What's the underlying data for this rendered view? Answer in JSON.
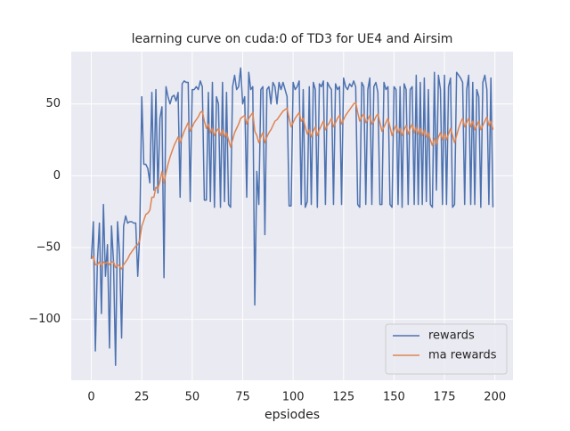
{
  "chart_data": {
    "type": "line",
    "title": "learning curve on cuda:0 of TD3 for UE4 and Airsim",
    "x_label": "epsiodes",
    "x": [
      0,
      1,
      2,
      3,
      4,
      5,
      6,
      7,
      8,
      9,
      10,
      11,
      12,
      13,
      14,
      15,
      16,
      17,
      18,
      19,
      20,
      21,
      22,
      23,
      24,
      25,
      26,
      27,
      28,
      29,
      30,
      31,
      32,
      33,
      34,
      35,
      36,
      37,
      38,
      39,
      40,
      41,
      42,
      43,
      44,
      45,
      46,
      47,
      48,
      49,
      50,
      51,
      52,
      53,
      54,
      55,
      56,
      57,
      58,
      59,
      60,
      61,
      62,
      63,
      64,
      65,
      66,
      67,
      68,
      69,
      70,
      71,
      72,
      73,
      74,
      75,
      76,
      77,
      78,
      79,
      80,
      81,
      82,
      83,
      84,
      85,
      86,
      87,
      88,
      89,
      90,
      91,
      92,
      93,
      94,
      95,
      96,
      97,
      98,
      99,
      100,
      101,
      102,
      103,
      104,
      105,
      106,
      107,
      108,
      109,
      110,
      111,
      112,
      113,
      114,
      115,
      116,
      117,
      118,
      119,
      120,
      121,
      122,
      123,
      124,
      125,
      126,
      127,
      128,
      129,
      130,
      131,
      132,
      133,
      134,
      135,
      136,
      137,
      138,
      139,
      140,
      141,
      142,
      143,
      144,
      145,
      146,
      147,
      148,
      149,
      150,
      151,
      152,
      153,
      154,
      155,
      156,
      157,
      158,
      159,
      160,
      161,
      162,
      163,
      164,
      165,
      166,
      167,
      168,
      169,
      170,
      171,
      172,
      173,
      174,
      175,
      176,
      177,
      178,
      179,
      180,
      181,
      182,
      183,
      184,
      185,
      186,
      187,
      188,
      189,
      190,
      191,
      192,
      193,
      194,
      195,
      196,
      197,
      198,
      199
    ],
    "series": [
      {
        "name": "rewards",
        "color": "#4c72b0",
        "values": [
          -58,
          -32,
          -122,
          -60,
          -33,
          -96,
          -20,
          -70,
          -48,
          -120,
          -35,
          -60,
          -132,
          -32,
          -55,
          -113,
          -35,
          -28,
          -33,
          -32,
          -32,
          -33,
          -33,
          -70,
          -40,
          55,
          8,
          8,
          5,
          -5,
          58,
          -10,
          60,
          -12,
          40,
          48,
          -71,
          62,
          55,
          50,
          55,
          56,
          52,
          58,
          -15,
          64,
          66,
          65,
          65,
          -18,
          60,
          60,
          62,
          60,
          66,
          62,
          -17,
          -17,
          58,
          -18,
          65,
          -22,
          55,
          50,
          -22,
          65,
          -18,
          58,
          -20,
          -22,
          62,
          70,
          60,
          62,
          75,
          50,
          55,
          -15,
          72,
          60,
          62,
          -90,
          3,
          -20,
          60,
          62,
          -41,
          60,
          62,
          50,
          65,
          62,
          50,
          65,
          60,
          65,
          60,
          55,
          -21,
          -21,
          65,
          60,
          62,
          66,
          -20,
          60,
          -22,
          -18,
          62,
          -20,
          65,
          60,
          -22,
          64,
          62,
          66,
          -20,
          65,
          62,
          60,
          -20,
          64,
          60,
          62,
          -20,
          68,
          62,
          60,
          64,
          62,
          66,
          62,
          -20,
          -22,
          65,
          62,
          -20,
          60,
          68,
          -20,
          62,
          65,
          58,
          -20,
          -20,
          65,
          60,
          62,
          -20,
          -22,
          62,
          60,
          -20,
          62,
          -22,
          64,
          60,
          -20,
          60,
          62,
          -20,
          70,
          -20,
          65,
          -20,
          68,
          -18,
          60,
          -20,
          -22,
          72,
          -10,
          70,
          60,
          -20,
          70,
          -20,
          62,
          68,
          -22,
          -20,
          72,
          70,
          68,
          65,
          -20,
          60,
          70,
          -20,
          65,
          -20,
          60,
          55,
          -22,
          65,
          70,
          60,
          -20,
          68,
          -22
        ]
      },
      {
        "name": "ma rewards",
        "color": "#dd8452",
        "values": [
          -58,
          -56,
          -62,
          -62,
          -60,
          -63,
          -60,
          -61,
          -60,
          -62,
          -60,
          -60,
          -64,
          -62,
          -63,
          -65,
          -62,
          -60,
          -58,
          -55,
          -53,
          -51,
          -49,
          -48,
          -45,
          -35,
          -31,
          -27,
          -26,
          -24,
          -15,
          -15,
          -8,
          -9,
          -4,
          3,
          -5,
          2,
          8,
          13,
          17,
          21,
          24,
          27,
          23,
          27,
          31,
          34,
          37,
          31,
          34,
          37,
          39,
          41,
          44,
          45,
          38,
          33,
          36,
          30,
          33,
          28,
          31,
          33,
          28,
          32,
          27,
          30,
          25,
          20,
          25,
          30,
          33,
          36,
          40,
          41,
          42,
          36,
          40,
          42,
          44,
          31,
          28,
          23,
          27,
          30,
          23,
          27,
          30,
          32,
          35,
          38,
          39,
          41,
          43,
          45,
          46,
          47,
          40,
          34,
          37,
          40,
          42,
          44,
          38,
          40,
          34,
          29,
          32,
          27,
          31,
          34,
          28,
          32,
          35,
          38,
          32,
          35,
          37,
          40,
          34,
          37,
          40,
          42,
          36,
          39,
          42,
          44,
          46,
          48,
          50,
          51,
          44,
          38,
          41,
          43,
          37,
          39,
          42,
          36,
          38,
          41,
          43,
          37,
          31,
          34,
          37,
          40,
          34,
          28,
          32,
          35,
          30,
          33,
          28,
          32,
          35,
          29,
          33,
          36,
          30,
          34,
          29,
          33,
          28,
          32,
          27,
          30,
          25,
          21,
          26,
          22,
          27,
          30,
          25,
          30,
          25,
          29,
          33,
          28,
          23,
          28,
          33,
          37,
          40,
          34,
          37,
          40,
          34,
          38,
          32,
          35,
          38,
          32,
          35,
          38,
          41,
          35,
          38,
          32
        ]
      }
    ],
    "xlim": [
      -9.95,
      208.95
    ],
    "xticks": [
      0,
      25,
      50,
      75,
      100,
      125,
      150,
      175,
      200
    ],
    "ylim": [
      -142.4,
      86.4
    ],
    "yticks": [
      {
        "value": -100,
        "label": "−100"
      },
      {
        "value": -50,
        "label": "−50"
      },
      0,
      50
    ],
    "grid": true,
    "legend": "lower right"
  }
}
